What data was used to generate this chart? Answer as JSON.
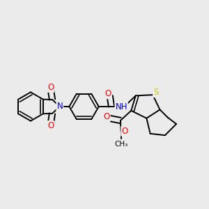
{
  "bg_color": "#ebebeb",
  "bond_color": "#000000",
  "bond_width": 1.4,
  "atom_colors": {
    "O": "#ff0000",
    "N": "#0000cd",
    "S": "#cccc00",
    "C": "#000000"
  },
  "font_size": 8.5
}
